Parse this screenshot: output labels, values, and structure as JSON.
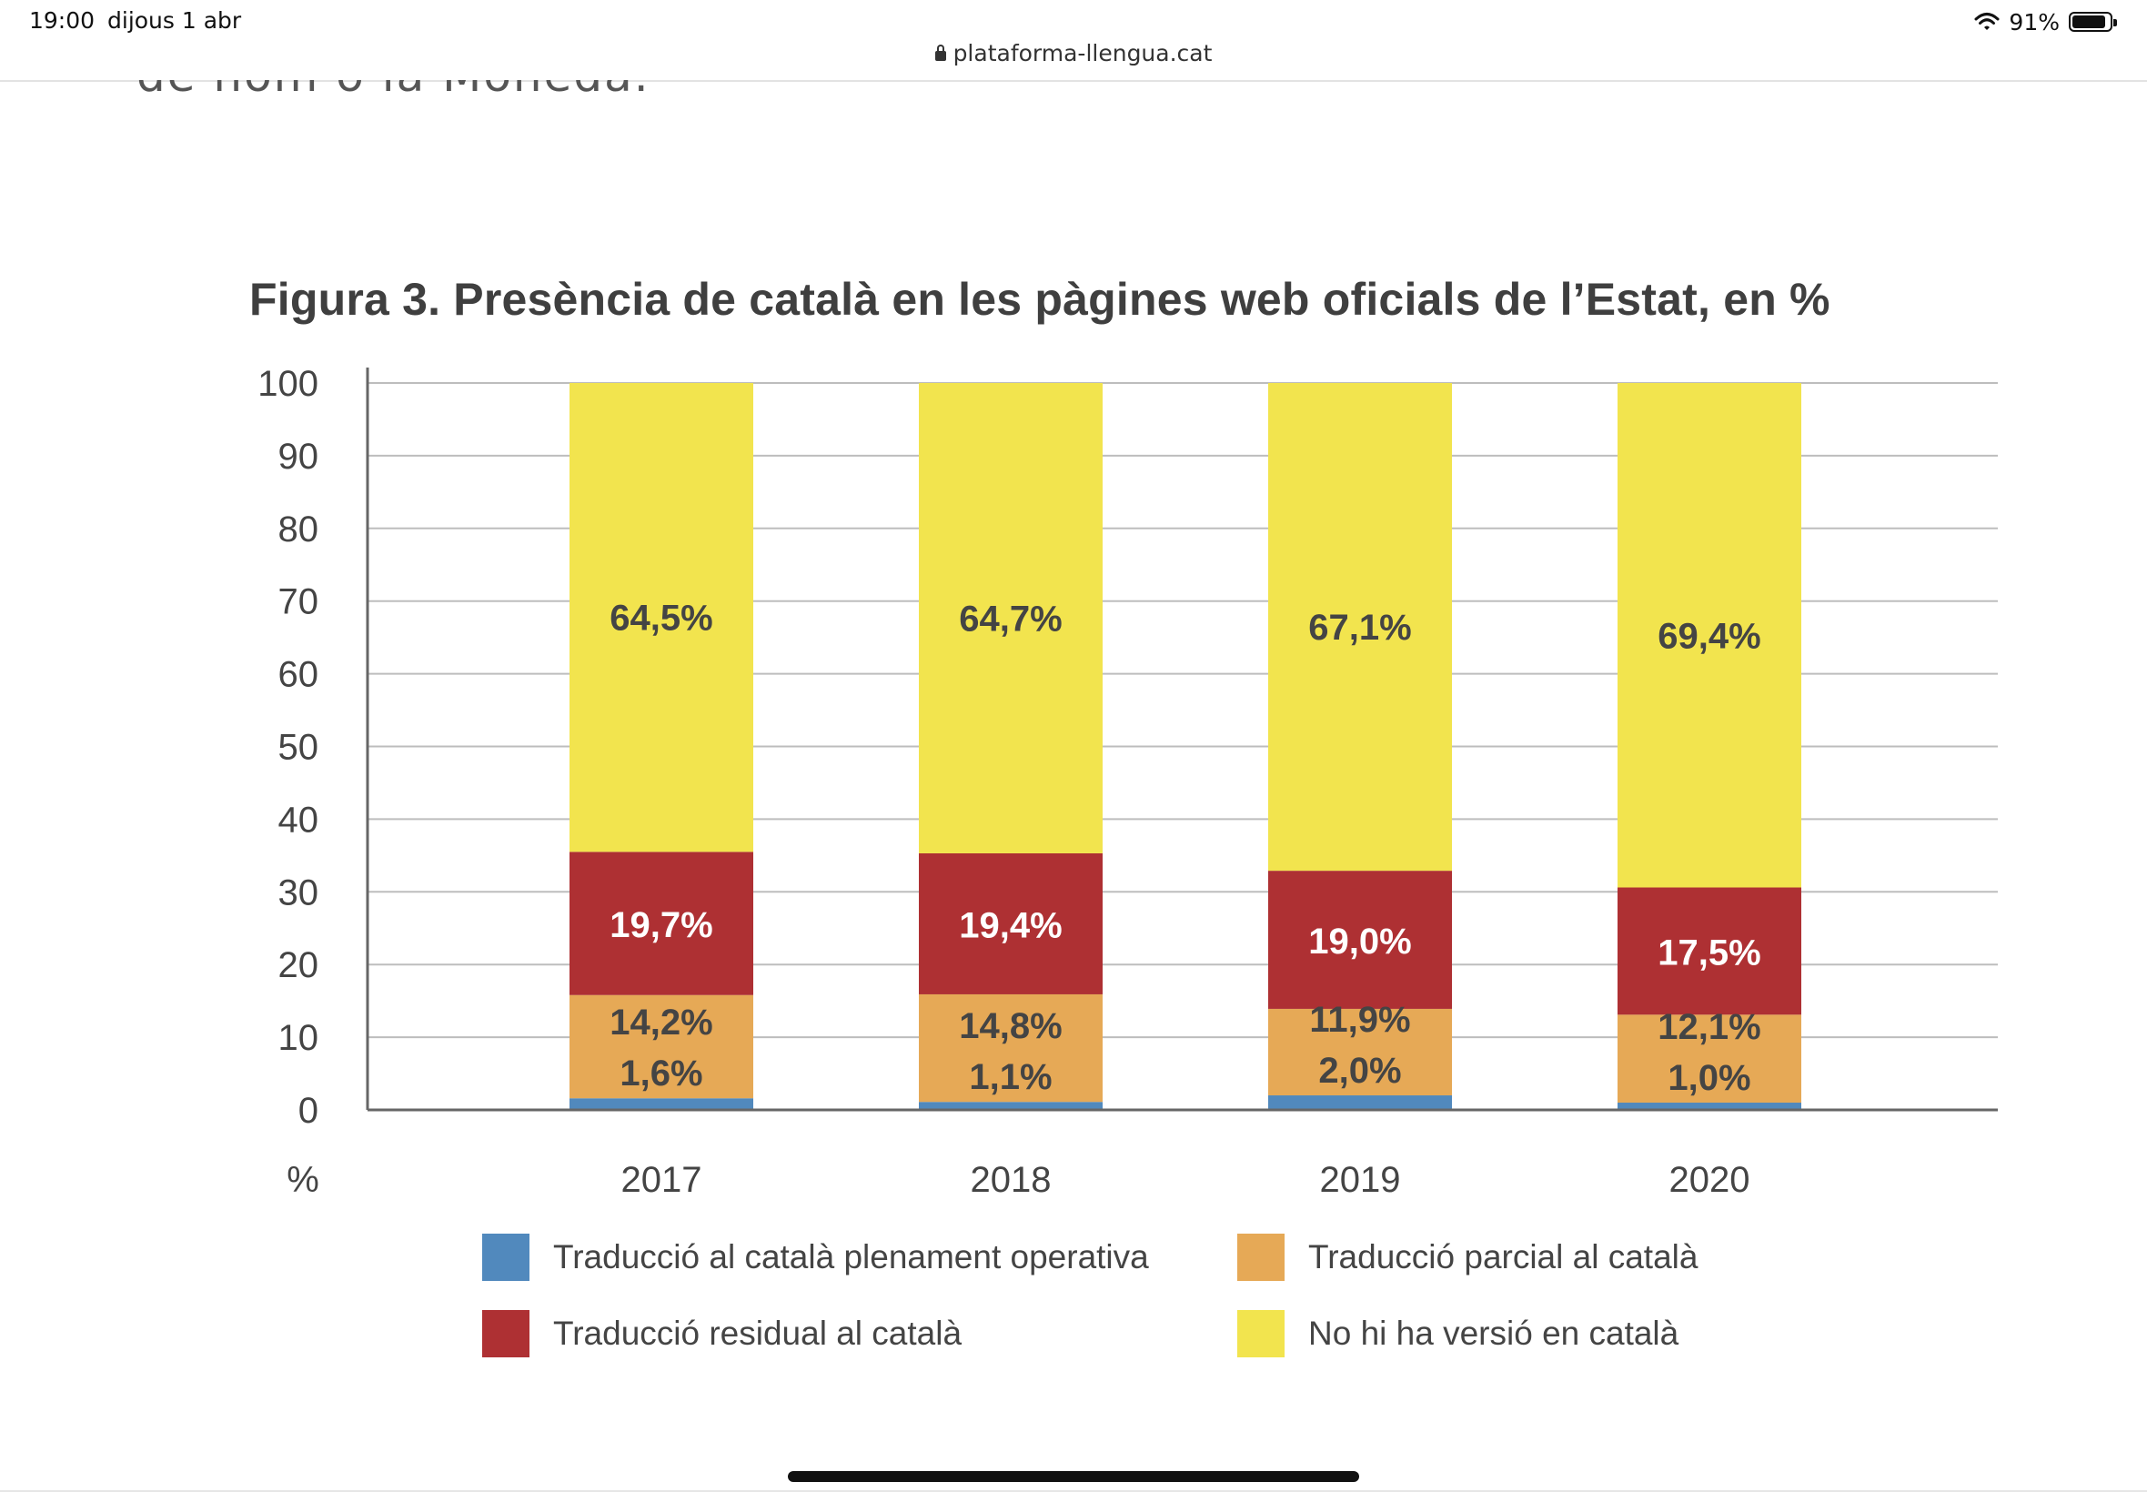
{
  "status_bar": {
    "time": "19:00",
    "date": "dijous 1 abr",
    "battery": "91%",
    "battery_level": 0.91
  },
  "browser": {
    "url": "plataforma-llengua.cat"
  },
  "page": {
    "clipped_text": "de nom o la Moneda."
  },
  "chart_data": {
    "type": "bar",
    "stacked": true,
    "title": "Figura 3. Presència de català en les pàgines web oficials de l’Estat, en %",
    "ylabel": "%",
    "ylim": [
      0,
      100
    ],
    "yticks": [
      "100",
      "90",
      "80",
      "70",
      "60",
      "50",
      "40",
      "30",
      "20",
      "10",
      "0"
    ],
    "grid": true,
    "categories": [
      "2017",
      "2018",
      "2019",
      "2020"
    ],
    "series": [
      {
        "name": "Traducció al català plenament operativa",
        "color": "#5189bd",
        "values": [
          1.6,
          1.1,
          2.0,
          1.0
        ],
        "labels": [
          "1,6%",
          "1,1%",
          "2,0%",
          "1,0%"
        ],
        "label_color": "#444444"
      },
      {
        "name": "Traducció parcial al català",
        "color": "#e6a956",
        "values": [
          14.2,
          14.8,
          11.9,
          12.1
        ],
        "labels": [
          "14,2%",
          "14,8%",
          "11,9%",
          "12,1%"
        ],
        "label_color": "#444444"
      },
      {
        "name": "Traducció residual al català",
        "color": "#ae3033",
        "values": [
          19.7,
          19.4,
          19.0,
          17.5
        ],
        "labels": [
          "19,7%",
          "19,4%",
          "19,0%",
          "17,5%"
        ],
        "label_color": "#ffffff"
      },
      {
        "name": "No hi ha versió en català",
        "color": "#f2e44e",
        "values": [
          64.5,
          64.7,
          67.1,
          69.4
        ],
        "labels": [
          "64,5%",
          "64,7%",
          "67,1%",
          "69,4%"
        ],
        "label_color": "#444444"
      }
    ],
    "legend": {
      "placement": "bottom",
      "order": [
        0,
        1,
        2,
        3
      ]
    }
  }
}
